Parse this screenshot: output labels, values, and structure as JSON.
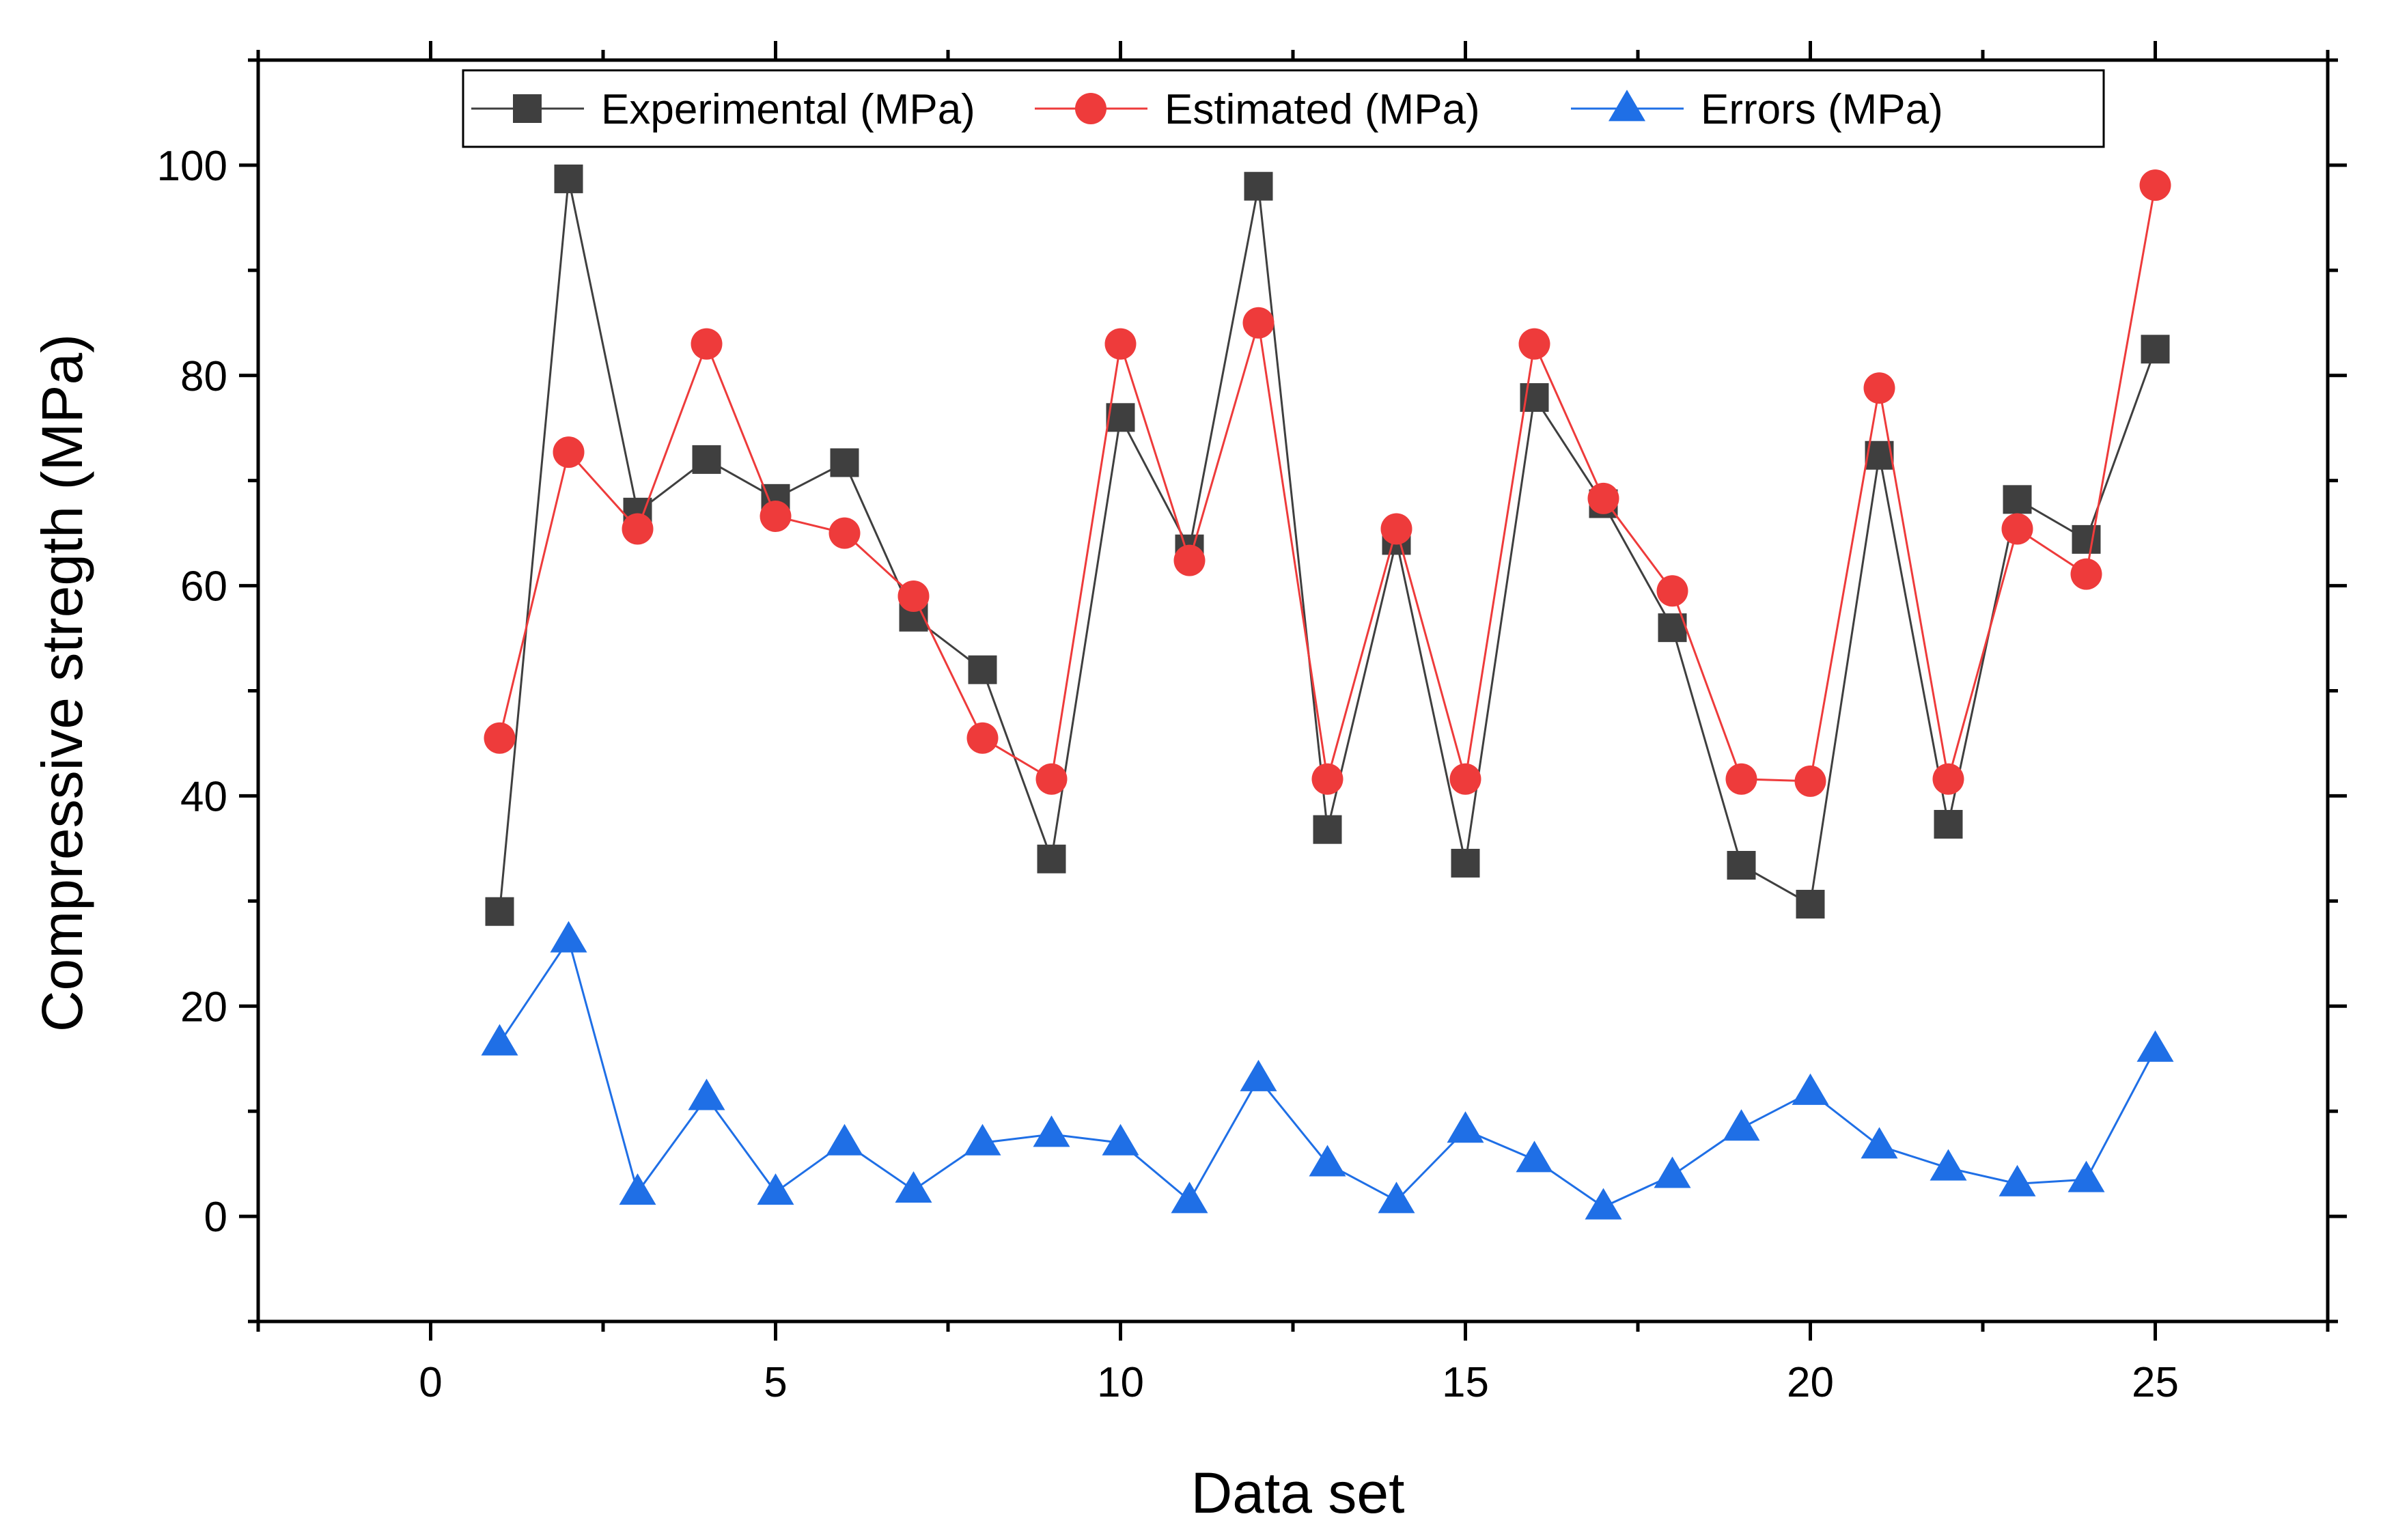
{
  "chart_data": {
    "type": "line",
    "title": "",
    "xlabel": "Data set",
    "ylabel": "Compressive stregth (MPa)",
    "xlim": [
      -2.5,
      27.5
    ],
    "ylim": [
      -10,
      110
    ],
    "x_ticks": [
      0,
      5,
      10,
      15,
      20,
      25
    ],
    "x_tick_labels": [
      "0",
      "5",
      "10",
      "15",
      "20",
      "25"
    ],
    "y_ticks": [
      0,
      20,
      40,
      60,
      80,
      100
    ],
    "y_tick_labels": [
      "0",
      "20",
      "40",
      "60",
      "80",
      "100"
    ],
    "grid": false,
    "legend_position": "top-center",
    "x": [
      1,
      2,
      3,
      4,
      5,
      6,
      7,
      8,
      9,
      10,
      11,
      12,
      13,
      14,
      15,
      16,
      17,
      18,
      19,
      20,
      21,
      22,
      23,
      24,
      25
    ],
    "series": [
      {
        "name": "Experimental (MPa)",
        "marker": "square",
        "color": "#3f3f3f",
        "values": [
          29.0,
          98.7,
          67.0,
          72.0,
          68.3,
          71.7,
          57.0,
          52.0,
          34.0,
          76.0,
          63.5,
          98.0,
          36.8,
          64.3,
          33.6,
          77.9,
          67.8,
          56.0,
          33.4,
          29.7,
          72.4,
          37.3,
          68.2,
          64.4,
          82.5
        ]
      },
      {
        "name": "Estimated (MPa)",
        "marker": "circle",
        "color": "#ee3b3b",
        "values": [
          45.5,
          72.7,
          65.4,
          83.0,
          66.6,
          65.0,
          59.0,
          45.5,
          41.6,
          83.0,
          62.4,
          85.0,
          41.6,
          65.4,
          41.6,
          83.0,
          68.3,
          59.5,
          41.6,
          41.4,
          78.8,
          41.6,
          65.4,
          61.1,
          98.1
        ]
      },
      {
        "name": "Errors (MPa)",
        "marker": "triangle",
        "color": "#1f6fe6",
        "values": [
          16.5,
          26.3,
          2.3,
          11.3,
          2.3,
          7.0,
          2.5,
          7.0,
          7.8,
          7.0,
          1.5,
          13.1,
          5.0,
          1.5,
          8.2,
          5.4,
          0.9,
          3.9,
          8.4,
          11.8,
          6.7,
          4.6,
          3.1,
          3.5,
          15.9
        ]
      }
    ]
  }
}
